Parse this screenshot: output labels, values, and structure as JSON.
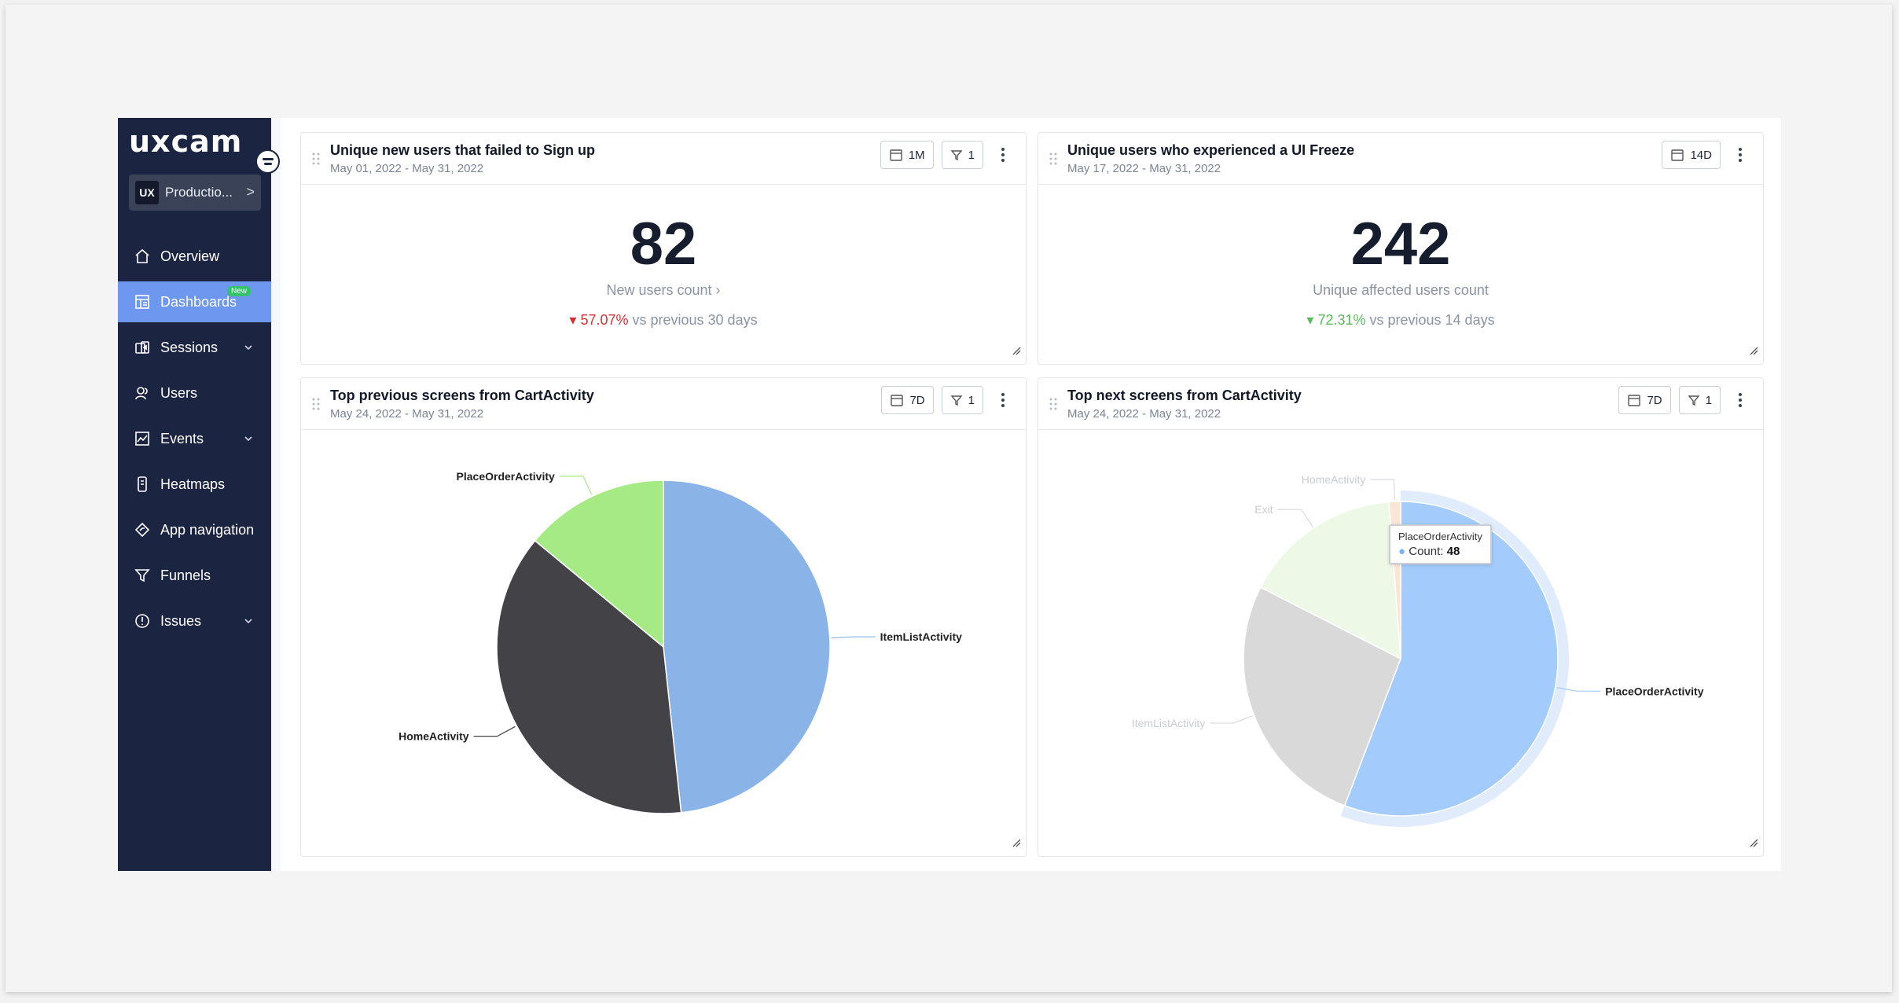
{
  "brand": {
    "logo": "uxcam"
  },
  "project": {
    "badge": "UX",
    "name": "Productio...",
    "chevron": ">"
  },
  "sidebar": {
    "items": [
      {
        "label": "Overview",
        "icon": "home-icon"
      },
      {
        "label": "Dashboards",
        "icon": "dashboard-icon",
        "badge": "New",
        "active": true
      },
      {
        "label": "Sessions",
        "icon": "sessions-icon",
        "expandable": true
      },
      {
        "label": "Users",
        "icon": "users-icon"
      },
      {
        "label": "Events",
        "icon": "events-icon",
        "expandable": true
      },
      {
        "label": "Heatmaps",
        "icon": "heatmaps-icon"
      },
      {
        "label": "App navigation",
        "icon": "app-navigation-icon"
      },
      {
        "label": "Funnels",
        "icon": "funnels-icon"
      },
      {
        "label": "Issues",
        "icon": "issues-icon",
        "expandable": true
      }
    ]
  },
  "cards": {
    "signup": {
      "title": "Unique new users that failed to Sign up",
      "date": "May 01, 2022 - May 31, 2022",
      "range": "1M",
      "filters": "1",
      "value": "82",
      "subtitle": "New users count ›",
      "delta": "57.07%",
      "delta_text": " vs previous 30 days",
      "delta_direction": "down",
      "delta_color": "#d63031"
    },
    "freeze": {
      "title": "Unique users who experienced a UI Freeze",
      "date": "May 17, 2022 - May 31, 2022",
      "range": "14D",
      "value": "242",
      "subtitle": "Unique affected users count",
      "delta": "72.31%",
      "delta_text": " vs previous 14 days",
      "delta_direction": "down",
      "delta_color": "#5cb85c"
    },
    "prev": {
      "title": "Top previous screens from CartActivity",
      "date": "May 24, 2022 - May 31, 2022",
      "range": "7D",
      "filters": "1"
    },
    "next": {
      "title": "Top next screens from CartActivity",
      "date": "May 24, 2022 - May 31, 2022",
      "range": "7D",
      "filters": "1",
      "tooltip": {
        "name": "PlaceOrderActivity",
        "label": "Count:",
        "value": "48"
      }
    }
  },
  "chart_data": [
    {
      "type": "pie",
      "title": "Top previous screens from CartActivity",
      "slices": [
        {
          "label": "ItemListActivity",
          "value": 48.3,
          "color": "#8ab3e8"
        },
        {
          "label": "HomeActivity",
          "value": 37.7,
          "color": "#424247"
        },
        {
          "label": "PlaceOrderActivity",
          "value": 14.0,
          "color": "#a6ea86"
        }
      ]
    },
    {
      "type": "pie",
      "title": "Top next screens from CartActivity",
      "highlighted": "PlaceOrderActivity",
      "slices": [
        {
          "label": "PlaceOrderActivity",
          "value": 55.8,
          "color": "#a3cbfb"
        },
        {
          "label": "ItemListActivity",
          "value": 26.7,
          "color": "#d9d9d9"
        },
        {
          "label": "Exit",
          "value": 16.3,
          "color": "#edf9e6"
        },
        {
          "label": "HomeActivity",
          "value": 1.2,
          "color": "#fbe6d6"
        }
      ]
    }
  ]
}
